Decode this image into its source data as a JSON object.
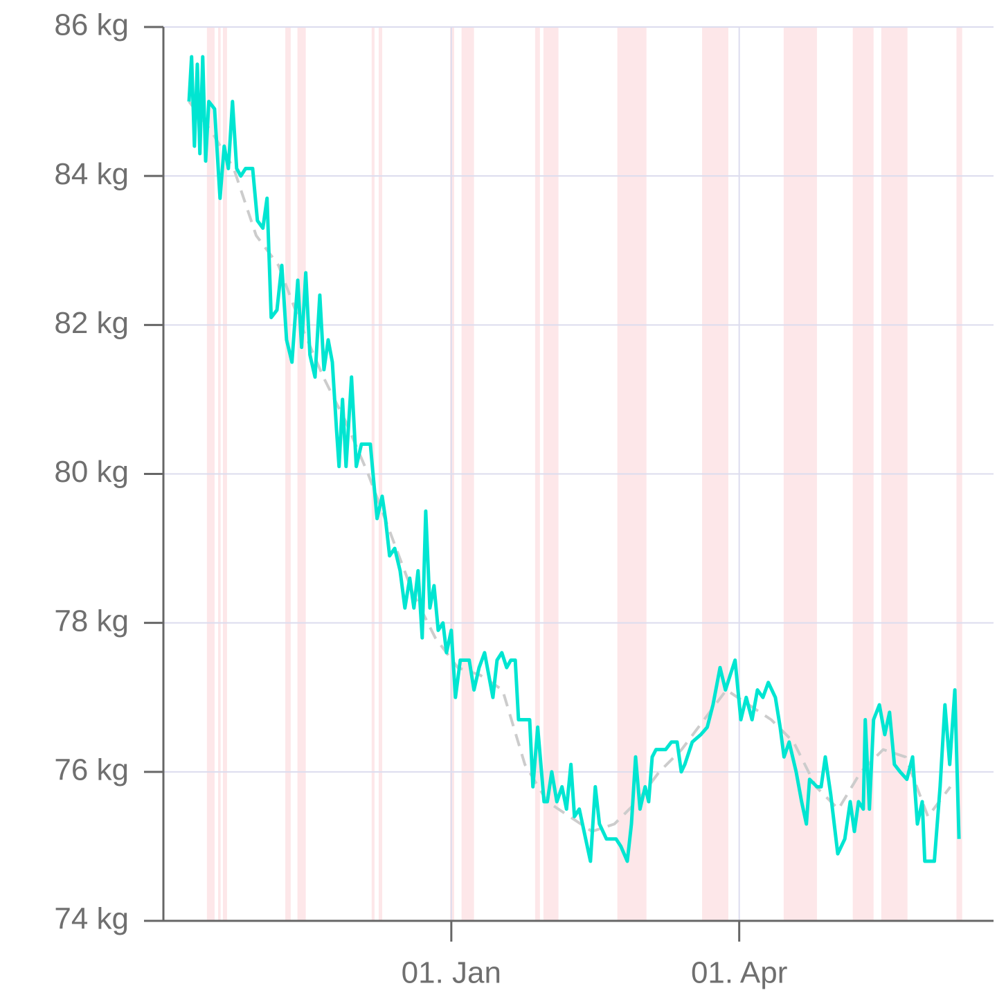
{
  "chart_data": {
    "type": "line",
    "xlim": [
      -90,
      169.5
    ],
    "xticks": [
      {
        "value": 0,
        "label": "01. Jan"
      },
      {
        "value": 90,
        "label": "01. Apr"
      }
    ],
    "ylim": [
      74,
      86
    ],
    "yticks": [
      {
        "value": 74,
        "label": "74 kg"
      },
      {
        "value": 76,
        "label": "76 kg"
      },
      {
        "value": 78,
        "label": "78 kg"
      },
      {
        "value": 80,
        "label": "80 kg"
      },
      {
        "value": 82,
        "label": "82 kg"
      },
      {
        "value": 84,
        "label": "84 kg"
      },
      {
        "value": 86,
        "label": "86 kg"
      }
    ],
    "grid": true,
    "bands": {
      "color": "#fde7e9",
      "ranges": [
        [
          -76.4,
          -74.0
        ],
        [
          -72.9,
          -72.1
        ],
        [
          -71.4,
          -70.1
        ],
        [
          -51.9,
          -50.2
        ],
        [
          -48.1,
          -45.5
        ],
        [
          -24.9,
          -24.0
        ],
        [
          -22.7,
          -21.6
        ],
        [
          -0.4,
          0.9
        ],
        [
          3.2,
          7.1
        ],
        [
          26.2,
          27.7
        ],
        [
          28.8,
          33.5
        ],
        [
          51.9,
          61.0
        ],
        [
          78.4,
          86.6
        ],
        [
          103.9,
          114.3
        ],
        [
          125.5,
          132.0
        ],
        [
          134.4,
          142.6
        ],
        [
          157.9,
          159.7
        ]
      ]
    },
    "series": [
      {
        "color": "#00e5d1",
        "style": "solid",
        "x": [
          -82,
          -81.2,
          -80.3,
          -79.4,
          -78.6,
          -77.7,
          -76.8,
          -75.8,
          -74,
          -72.3,
          -71,
          -69.7,
          -68.4,
          -67.1,
          -65.8,
          -64.3,
          -62.1,
          -60.6,
          -58.9,
          -57.6,
          -56.3,
          -54.5,
          -53,
          -51.5,
          -49.8,
          -48,
          -46.8,
          -45.5,
          -44.2,
          -42.6,
          -41.1,
          -39.8,
          -38.5,
          -37.2,
          -35.9,
          -35.1,
          -34,
          -32.9,
          -31.2,
          -29.7,
          -28.1,
          -25.3,
          -23.2,
          -21.6,
          -20.6,
          -19.3,
          -17.7,
          -16,
          -14.5,
          -13,
          -11.7,
          -10.4,
          -9.1,
          -8,
          -6.7,
          -5.4,
          -4.1,
          -2.6,
          -1.5,
          0,
          1.3,
          2.8,
          5.6,
          7.1,
          8.7,
          10.4,
          11.7,
          13,
          14.3,
          15.8,
          17.3,
          18.6,
          20,
          21,
          24.5,
          25.5,
          27,
          29,
          30,
          31.4,
          33,
          34.6,
          36,
          37.4,
          38.5,
          40,
          42,
          43.5,
          45,
          46.3,
          48.5,
          51.5,
          53,
          55,
          56.3,
          57.6,
          59,
          60.6,
          61.7,
          62.8,
          64,
          65.6,
          67,
          68.8,
          70.6,
          71.9,
          73,
          75.3,
          78,
          80,
          81.8,
          84,
          85.7,
          87.2,
          88.7,
          90.5,
          92.2,
          94,
          95.7,
          97.4,
          99.1,
          101.3,
          102.8,
          104,
          105.6,
          107.8,
          109.5,
          111,
          112,
          114.3,
          115.6,
          116.9,
          118.6,
          120.8,
          123,
          124.7,
          126,
          127.3,
          128.8,
          129.4,
          130.7,
          132,
          133.8,
          135.5,
          137,
          138.5,
          140.3,
          142.4,
          144.2,
          145.7,
          147.2,
          148,
          151,
          152.8,
          154.3,
          155.8,
          157.4,
          158.7
        ],
        "values": [
          85.0,
          85.6,
          84.4,
          85.5,
          84.3,
          85.6,
          84.2,
          85.0,
          84.9,
          83.7,
          84.4,
          84.1,
          85.0,
          84.1,
          84.0,
          84.1,
          84.1,
          83.4,
          83.3,
          83.7,
          82.1,
          82.2,
          82.8,
          81.8,
          81.5,
          82.6,
          81.7,
          82.7,
          81.6,
          81.3,
          82.4,
          81.4,
          81.8,
          81.5,
          80.6,
          80.1,
          81.0,
          80.1,
          81.3,
          80.1,
          80.4,
          80.4,
          79.4,
          79.7,
          79.4,
          78.9,
          79.0,
          78.7,
          78.2,
          78.6,
          78.2,
          78.7,
          77.8,
          79.5,
          78.2,
          78.5,
          77.9,
          78.0,
          77.6,
          77.9,
          77.0,
          77.5,
          77.5,
          77.1,
          77.4,
          77.6,
          77.3,
          77.0,
          77.5,
          77.6,
          77.4,
          77.5,
          77.5,
          76.7,
          76.7,
          75.8,
          76.6,
          75.6,
          75.6,
          76.0,
          75.6,
          75.8,
          75.5,
          76.1,
          75.4,
          75.5,
          75.1,
          74.8,
          75.8,
          75.3,
          75.1,
          75.1,
          75.0,
          74.8,
          75.3,
          76.2,
          75.5,
          75.8,
          75.6,
          76.2,
          76.3,
          76.3,
          76.3,
          76.4,
          76.4,
          76.0,
          76.1,
          76.4,
          76.5,
          76.6,
          76.9,
          77.4,
          77.1,
          77.3,
          77.5,
          76.7,
          77.0,
          76.7,
          77.1,
          77.0,
          77.2,
          77.0,
          76.6,
          76.2,
          76.4,
          76.0,
          75.6,
          75.3,
          75.9,
          75.8,
          75.8,
          76.2,
          75.7,
          74.9,
          75.1,
          75.6,
          75.2,
          75.6,
          75.5,
          76.7,
          75.5,
          76.7,
          76.9,
          76.5,
          76.8,
          76.1,
          76.0,
          75.9,
          76.2,
          75.3,
          75.6,
          74.8,
          74.8,
          75.8,
          76.9,
          76.1,
          77.1,
          75.1
        ]
      },
      {
        "color": "#cccccc",
        "style": "dashed",
        "x": [
          -82,
          -75,
          -68,
          -61,
          -54,
          -47,
          -40,
          -33,
          -26,
          -19,
          -12,
          -5,
          2,
          9,
          16,
          23,
          30,
          37,
          44,
          51,
          58,
          65,
          72,
          79,
          86,
          93,
          100,
          107,
          114,
          121,
          128,
          135,
          142,
          149,
          156
        ],
        "values": [
          85.0,
          84.6,
          84.1,
          83.2,
          82.8,
          82.0,
          81.3,
          80.7,
          80.0,
          79.2,
          78.4,
          77.8,
          77.4,
          77.3,
          77.1,
          76.1,
          75.6,
          75.4,
          75.2,
          75.3,
          75.6,
          76.0,
          76.3,
          76.7,
          77.1,
          76.9,
          76.7,
          76.4,
          75.8,
          75.5,
          76.0,
          76.3,
          76.2,
          75.4,
          75.8
        ]
      }
    ]
  }
}
